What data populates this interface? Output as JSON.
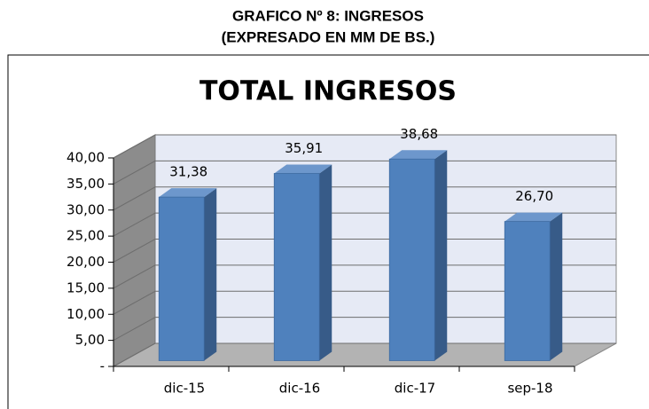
{
  "heading": [
    "GRAFICO Nº 8: INGRESOS",
    "(EXPRESADO EN MM DE BS.)"
  ],
  "chart_data": {
    "type": "bar3d",
    "title": "TOTAL INGRESOS",
    "categories": [
      "dic-15",
      "dic-16",
      "dic-17",
      "sep-18"
    ],
    "values": [
      31.38,
      35.91,
      38.68,
      26.7
    ],
    "value_labels": [
      "31,38",
      "35,91",
      "38,68",
      "26,70"
    ],
    "color": "#4f81bd",
    "ylim": [
      0,
      40
    ],
    "yticks": [
      {
        "value": 0,
        "label": "-"
      },
      {
        "value": 5,
        "label": "5,00"
      },
      {
        "value": 10,
        "label": "10,00"
      },
      {
        "value": 15,
        "label": "15,00"
      },
      {
        "value": 20,
        "label": "20,00"
      },
      {
        "value": 25,
        "label": "25,00"
      },
      {
        "value": 30,
        "label": "30,00"
      },
      {
        "value": 35,
        "label": "35,00"
      },
      {
        "value": 40,
        "label": "40,00"
      }
    ],
    "grid": true
  }
}
